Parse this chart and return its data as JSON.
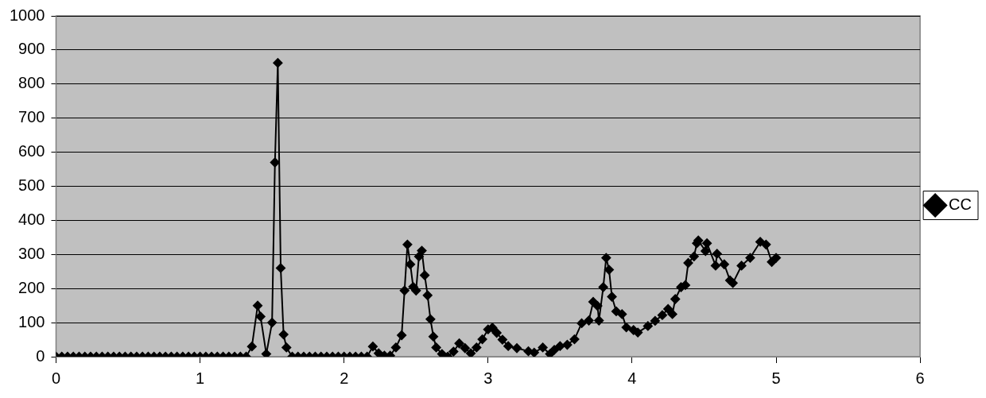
{
  "chart_data": {
    "type": "line",
    "xlim": [
      0,
      6
    ],
    "xticks": [
      0,
      1,
      2,
      3,
      4,
      5,
      6
    ],
    "ylim": [
      0,
      1000
    ],
    "yticks": [
      0,
      100,
      200,
      300,
      400,
      500,
      600,
      700,
      800,
      900,
      1000
    ],
    "grid": "y",
    "legend": "right",
    "marker": "diamond",
    "line_style": "solid",
    "series": [
      {
        "name": "CC",
        "color": "#000000",
        "x": [
          0,
          0.04,
          0.08,
          0.12,
          0.16,
          0.2,
          0.24,
          0.28,
          0.32,
          0.36,
          0.4,
          0.44,
          0.48,
          0.52,
          0.56,
          0.6,
          0.64,
          0.68,
          0.72,
          0.76,
          0.8,
          0.84,
          0.88,
          0.92,
          0.96,
          1,
          1.04,
          1.08,
          1.12,
          1.16,
          1.2,
          1.24,
          1.28,
          1.32,
          1.36,
          1.4,
          1.42,
          1.46,
          1.5,
          1.52,
          1.54,
          1.56,
          1.58,
          1.6,
          1.64,
          1.68,
          1.72,
          1.76,
          1.8,
          1.84,
          1.88,
          1.92,
          1.96,
          2,
          2.04,
          2.08,
          2.12,
          2.16,
          2.2,
          2.24,
          2.28,
          2.32,
          2.36,
          2.4,
          2.42,
          2.44,
          2.46,
          2.48,
          2.5,
          2.52,
          2.54,
          2.56,
          2.58,
          2.6,
          2.62,
          2.64,
          2.68,
          2.72,
          2.76,
          2.8,
          2.84,
          2.88,
          2.92,
          2.96,
          3,
          3.03,
          3.06,
          3.1,
          3.14,
          3.2,
          3.28,
          3.32,
          3.38,
          3.43,
          3.46,
          3.5,
          3.55,
          3.6,
          3.65,
          3.7,
          3.73,
          3.76,
          3.77,
          3.8,
          3.82,
          3.84,
          3.86,
          3.89,
          3.93,
          3.96,
          4.01,
          4.04,
          4.11,
          4.16,
          4.21,
          4.25,
          4.28,
          4.3,
          4.34,
          4.37,
          4.39,
          4.43,
          4.45,
          4.46,
          4.51,
          4.52,
          4.58,
          4.59,
          4.64,
          4.68,
          4.7,
          4.76,
          4.82,
          4.89,
          4.93,
          4.97,
          5
        ],
        "values": [
          0,
          0,
          0,
          0,
          0,
          0,
          0,
          0,
          0,
          0,
          0,
          0,
          0,
          0,
          0,
          0,
          0,
          0,
          0,
          0,
          0,
          0,
          0,
          0,
          0,
          0,
          0,
          0,
          0,
          0,
          0,
          0,
          0,
          0,
          30,
          150,
          118,
          8,
          100,
          570,
          862,
          260,
          65,
          27,
          0,
          0,
          0,
          0,
          0,
          0,
          0,
          0,
          0,
          0,
          0,
          0,
          0,
          0,
          30,
          10,
          3,
          3,
          27,
          63,
          194,
          329,
          271,
          205,
          194,
          294,
          311,
          239,
          180,
          110,
          59,
          27,
          8,
          0,
          15,
          39,
          25,
          10,
          27,
          51,
          80,
          85,
          70,
          50,
          31,
          25,
          16,
          12,
          27,
          8,
          20,
          31,
          35,
          51,
          98,
          106,
          161,
          149,
          106,
          204,
          290,
          255,
          176,
          133,
          125,
          86,
          78,
          71,
          90,
          105,
          122,
          140,
          125,
          169,
          204,
          210,
          275,
          294,
          333,
          341,
          310,
          333,
          267,
          302,
          271,
          224,
          216,
          267,
          290,
          337,
          329,
          278,
          290
        ]
      }
    ]
  }
}
